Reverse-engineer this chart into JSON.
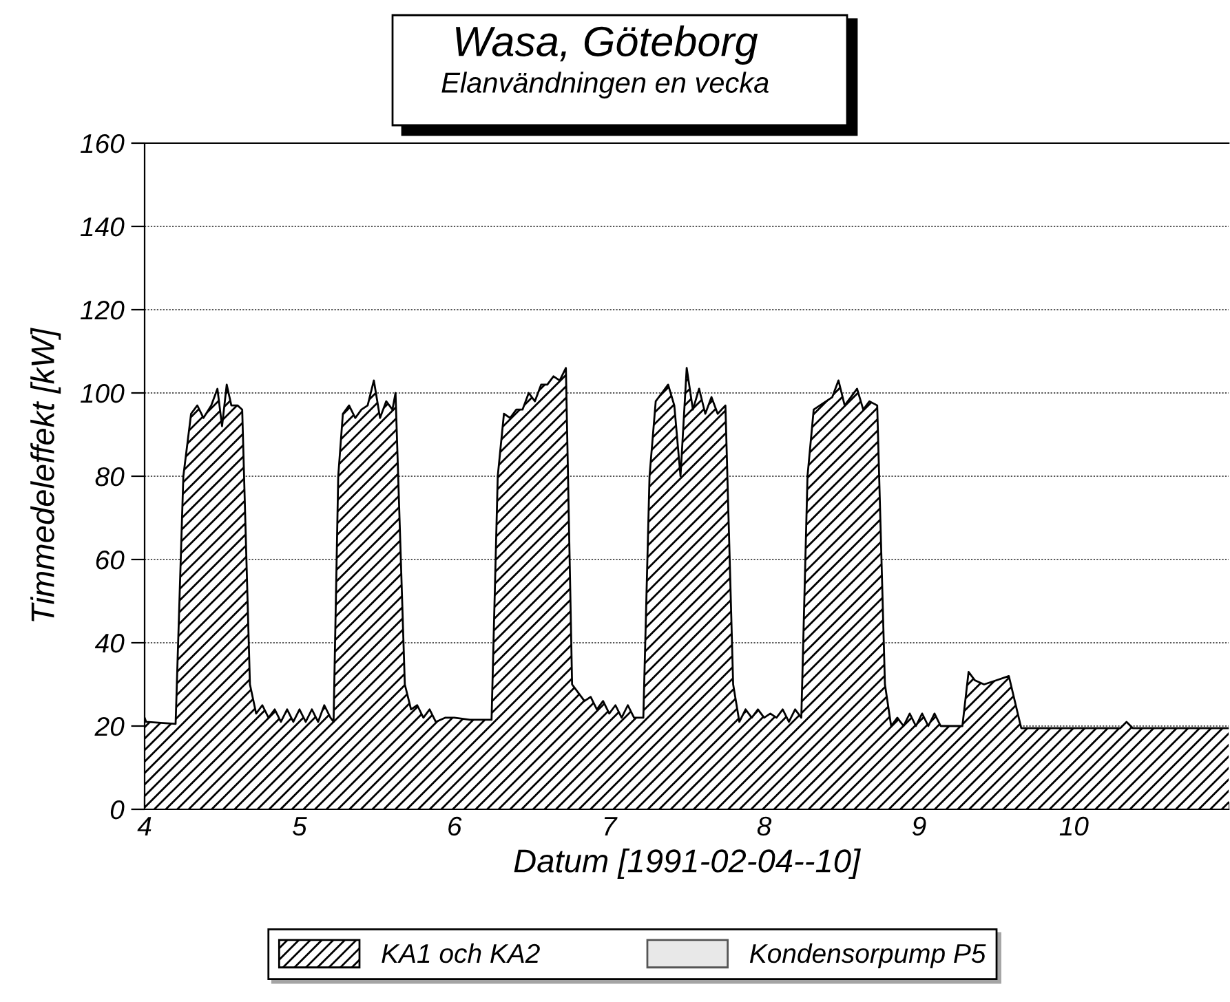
{
  "chart_data": {
    "type": "area",
    "title": "Wasa, Göteborg",
    "subtitle": "Elanvändningen en vecka",
    "xlabel": "Datum [1991-02-04--10]",
    "ylabel": "Timmedeleffekt [kW]",
    "xlim": [
      4,
      11
    ],
    "xticks": [
      4,
      5,
      6,
      7,
      8,
      9,
      10
    ],
    "ylim": [
      0,
      160
    ],
    "yticks": [
      0,
      20,
      40,
      60,
      80,
      100,
      120,
      140,
      160
    ],
    "grid": "y",
    "legend": "bottom",
    "series": [
      {
        "name": "KA1 och KA2",
        "color": "#000000",
        "x": [
          4.0,
          4.01,
          4.2,
          4.25,
          4.3,
          4.34,
          4.38,
          4.43,
          4.47,
          4.5,
          4.53,
          4.56,
          4.6,
          4.63,
          4.68,
          4.72,
          4.76,
          4.8,
          4.84,
          4.88,
          4.92,
          4.96,
          5.0,
          5.04,
          5.08,
          5.12,
          5.16,
          5.2,
          5.22,
          5.25,
          5.28,
          5.32,
          5.36,
          5.4,
          5.44,
          5.48,
          5.52,
          5.56,
          5.6,
          5.62,
          5.68,
          5.72,
          5.76,
          5.8,
          5.84,
          5.88,
          5.94,
          6.0,
          6.1,
          6.24,
          6.28,
          6.32,
          6.36,
          6.4,
          6.44,
          6.48,
          6.52,
          6.56,
          6.6,
          6.64,
          6.68,
          6.72,
          6.76,
          6.8,
          6.84,
          6.88,
          6.92,
          6.96,
          7.0,
          7.04,
          7.08,
          7.12,
          7.16,
          7.22,
          7.26,
          7.3,
          7.34,
          7.38,
          7.42,
          7.46,
          7.5,
          7.54,
          7.58,
          7.62,
          7.66,
          7.7,
          7.75,
          7.8,
          7.84,
          7.88,
          7.92,
          7.96,
          8.0,
          8.04,
          8.08,
          8.12,
          8.16,
          8.2,
          8.24,
          8.28,
          8.32,
          8.36,
          8.4,
          8.44,
          8.48,
          8.52,
          8.56,
          8.6,
          8.64,
          8.68,
          8.73,
          8.78,
          8.82,
          8.86,
          8.9,
          8.94,
          8.98,
          9.02,
          9.06,
          9.1,
          9.14,
          9.2,
          9.28,
          9.32,
          9.36,
          9.42,
          9.5,
          9.58,
          9.66,
          10.0,
          10.3,
          10.34,
          10.38,
          11.0
        ],
        "values": [
          22,
          21,
          20.5,
          80,
          95,
          97,
          94,
          97,
          101,
          92,
          102,
          97,
          97,
          96,
          30,
          23,
          25,
          22,
          24,
          21,
          24,
          21,
          24,
          21,
          24,
          21,
          25,
          22,
          21,
          80,
          95,
          97,
          94,
          96,
          97,
          103,
          94,
          98,
          96,
          100,
          30,
          24,
          25,
          22,
          24,
          21,
          22,
          22,
          21.5,
          21.5,
          80,
          95,
          94,
          96,
          96,
          100,
          98,
          102,
          102,
          104,
          103,
          106,
          30,
          28,
          26,
          27,
          24,
          26,
          23,
          25,
          22,
          25,
          22,
          22,
          80,
          98,
          100,
          102,
          97,
          80,
          106,
          96,
          101,
          95,
          99,
          95,
          97,
          30,
          21,
          24,
          22,
          24,
          22,
          23,
          22,
          24,
          21,
          24,
          22,
          80,
          96,
          97,
          98,
          99,
          103,
          97,
          99,
          101,
          96,
          98,
          97,
          30,
          20,
          22,
          20,
          23,
          20,
          23,
          20,
          23,
          20,
          20,
          20,
          33,
          31,
          30,
          31,
          32,
          19.5,
          19.5,
          19.5,
          21,
          19.5,
          19.5
        ]
      },
      {
        "name": "Kondensorpump P5",
        "color": "#e8e8e8"
      }
    ]
  }
}
